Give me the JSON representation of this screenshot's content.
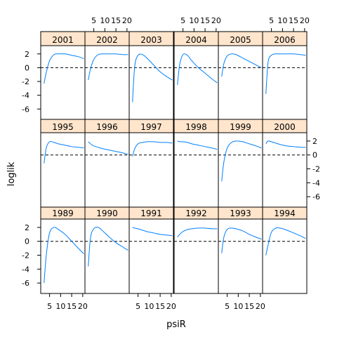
{
  "chart_data": {
    "type": "line",
    "layout": "trellis",
    "xlabel": "psiR",
    "ylabel": "loglik",
    "xlim": [
      1,
      21
    ],
    "ylim": [
      -7.5,
      3.2
    ],
    "x_ticks": [
      5,
      10,
      15,
      20
    ],
    "y_ticks": [
      -6,
      -4,
      -2,
      0,
      2
    ],
    "reference_line": {
      "y": 0,
      "style": "dashed"
    },
    "colors": {
      "line": "#0080ff",
      "strip": "#ffe5cc",
      "axis": "#000000"
    },
    "x": [
      2.5,
      3.5,
      5,
      7,
      9,
      12,
      15,
      18,
      20.5
    ],
    "panels": [
      {
        "name": "2001",
        "loglik": [
          -2.3,
          -0.7,
          1.0,
          1.9,
          2.0,
          2.0,
          1.8,
          1.6,
          1.3
        ]
      },
      {
        "name": "2002",
        "loglik": [
          -1.8,
          -0.2,
          1.2,
          1.9,
          2.0,
          2.0,
          2.0,
          1.9,
          1.9
        ]
      },
      {
        "name": "2003",
        "loglik": [
          -5.0,
          0.2,
          1.8,
          1.9,
          1.4,
          0.4,
          -0.6,
          -1.3,
          -1.8
        ]
      },
      {
        "name": "2004",
        "loglik": [
          -2.5,
          0.4,
          1.9,
          1.8,
          1.0,
          0.0,
          -0.8,
          -1.6,
          -2.2
        ]
      },
      {
        "name": "2005",
        "loglik": [
          -1.3,
          0.6,
          1.7,
          2.0,
          1.9,
          1.4,
          0.9,
          0.4,
          0.0
        ]
      },
      {
        "name": "2006",
        "loglik": [
          -3.8,
          0.8,
          1.8,
          2.0,
          2.0,
          2.0,
          2.0,
          1.9,
          1.8
        ]
      },
      {
        "name": "1995",
        "loglik": [
          -1.2,
          1.0,
          1.9,
          1.8,
          1.6,
          1.4,
          1.2,
          1.1,
          1.0
        ]
      },
      {
        "name": "1996",
        "loglik": [
          1.9,
          1.6,
          1.3,
          1.1,
          0.9,
          0.7,
          0.5,
          0.3,
          0.1
        ]
      },
      {
        "name": "1997",
        "loglik": [
          -0.2,
          0.9,
          1.6,
          1.8,
          1.9,
          1.9,
          1.8,
          1.8,
          1.7
        ]
      },
      {
        "name": "1998",
        "loglik": [
          2.0,
          1.9,
          1.9,
          1.8,
          1.6,
          1.4,
          1.2,
          1.0,
          0.8
        ]
      },
      {
        "name": "1999",
        "loglik": [
          -3.8,
          -1.0,
          1.0,
          1.8,
          2.0,
          1.9,
          1.6,
          1.3,
          1.0
        ]
      },
      {
        "name": "2000",
        "loglik": [
          1.6,
          2.0,
          1.9,
          1.7,
          1.5,
          1.3,
          1.2,
          1.1,
          1.1
        ]
      },
      {
        "name": "1989",
        "loglik": [
          -6.0,
          -2.0,
          1.2,
          2.0,
          1.7,
          1.0,
          0.0,
          -1.0,
          -1.8
        ]
      },
      {
        "name": "1990",
        "loglik": [
          -3.6,
          0.5,
          1.8,
          2.0,
          1.5,
          0.6,
          -0.2,
          -0.8,
          -1.3
        ]
      },
      {
        "name": "1991",
        "loglik": [
          2.0,
          1.9,
          1.8,
          1.6,
          1.4,
          1.2,
          1.0,
          0.9,
          0.8
        ]
      },
      {
        "name": "1992",
        "loglik": [
          0.6,
          1.0,
          1.4,
          1.7,
          1.8,
          1.9,
          1.9,
          1.8,
          1.8
        ]
      },
      {
        "name": "1993",
        "loglik": [
          -1.7,
          0.6,
          1.7,
          1.9,
          1.8,
          1.5,
          1.0,
          0.6,
          0.3
        ]
      },
      {
        "name": "1994",
        "loglik": [
          -2.0,
          -0.5,
          1.3,
          1.9,
          1.9,
          1.6,
          1.2,
          0.8,
          0.4
        ]
      }
    ]
  }
}
